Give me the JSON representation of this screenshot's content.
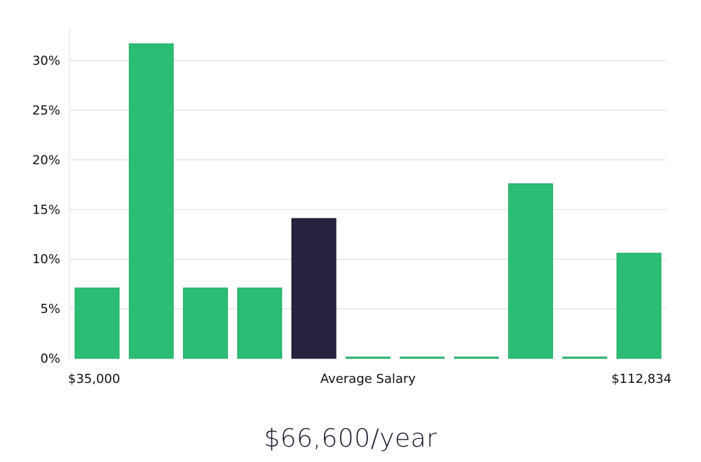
{
  "chart_data": {
    "type": "bar",
    "values": [
      7.1,
      31.7,
      7.1,
      7.1,
      14.1,
      0,
      0,
      0,
      17.6,
      0,
      10.6
    ],
    "highlight_index": 4,
    "ylim": [
      0,
      33
    ],
    "yticks": [
      0,
      5,
      10,
      15,
      20,
      25,
      30
    ],
    "ytick_suffix": "%",
    "x_labels": {
      "left": "$35,000",
      "center": "Average Salary",
      "right": "$112,834"
    },
    "grid": true
  },
  "colors": {
    "bar": "#2bbd74",
    "highlight": "#26233f",
    "grid": "#d9d9d9"
  },
  "headline": "$66,600/year"
}
